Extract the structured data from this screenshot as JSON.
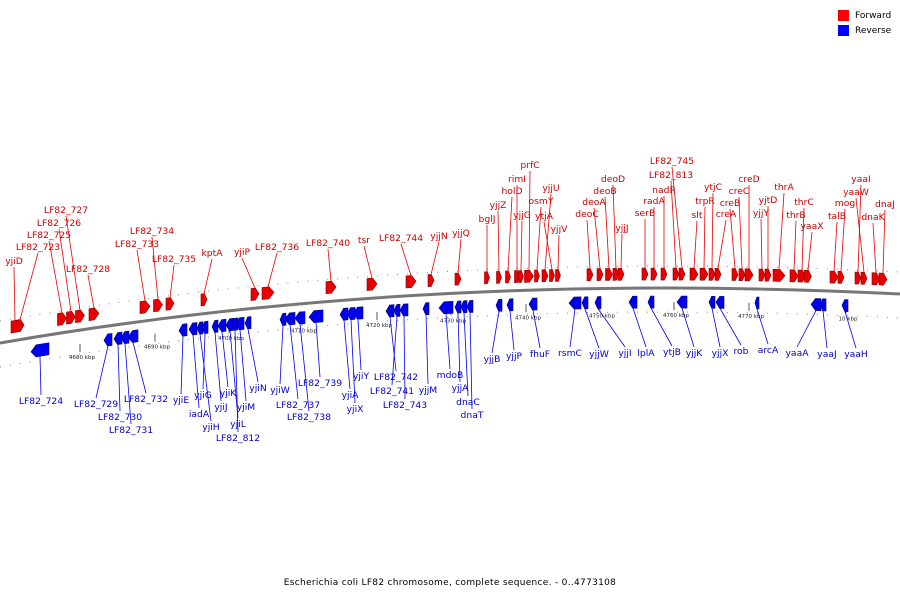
{
  "legend": [
    {
      "label": "Forward",
      "color": "#ff0000"
    },
    {
      "label": "Reverse",
      "color": "#0000ff"
    }
  ],
  "colors": {
    "forward": "#e80000",
    "reverse": "#0000ee",
    "axis": "#777777",
    "forward_label": "#cc0000",
    "reverse_label": "#0000cc"
  },
  "caption": "Escherichia coli LF82 chromosome, complete sequence. - 0..4773108",
  "ticks": [
    "4680 kbp",
    "4690 kbp",
    "4700 kbp",
    "4710 kbp",
    "4720 kbp",
    "4730 kbp",
    "4740 kbp",
    "4750 kbp",
    "4760 kbp",
    "4770 kbp",
    "10 kbp"
  ],
  "forward_genes": [
    "yjiD",
    "LF82_723",
    "LF82_725",
    "LF82_726",
    "LF82_727",
    "LF82_728",
    "LF82_733",
    "LF82_734",
    "LF82_735",
    "kptA",
    "yjiP",
    "LF82_736",
    "LF82_740",
    "tsr",
    "LF82_744",
    "yjjN",
    "yjjQ",
    "bglJ",
    "yjjZ",
    "holD",
    "rimI",
    "yjjG",
    "prfC",
    "osmY",
    "yjjU",
    "ytjA",
    "yjjV",
    "deoC",
    "deoA",
    "deoB",
    "deoD",
    "yjjJ",
    "serB",
    "radA",
    "nadR",
    "LF82_813",
    "LF82_745",
    "slt",
    "trpR",
    "ytjC",
    "creA",
    "creB",
    "creC",
    "creD",
    "yjjY",
    "yjtD",
    "thrA",
    "thrB",
    "thrC",
    "yaaX",
    "talB",
    "mog",
    "yaaI",
    "yaaW",
    "dnaK",
    "dnaJ"
  ],
  "reverse_genes": [
    "LF82_724",
    "LF82_729",
    "LF82_730",
    "LF82_731",
    "LF82_732",
    "yjiE",
    "iadA",
    "yjiH",
    "yjiG",
    "yjiJ",
    "yjiK",
    "yjiL",
    "LF82_812",
    "yjiM",
    "yjiN",
    "yjiW",
    "LF82_737",
    "LF82_738",
    "LF82_739",
    "yjiA",
    "yjiX",
    "yjiY",
    "LF82_742",
    "LF82_741",
    "LF82_743",
    "yjjM",
    "mdoB",
    "yjjA",
    "dnaC",
    "dnaT",
    "yjjB",
    "yjjP",
    "fhuF",
    "rsmC",
    "yjjW",
    "yjjI",
    "lplA",
    "ytjB",
    "yjjK",
    "yjjX",
    "rob",
    "arcA",
    "yaaA",
    "yaaJ",
    "yaaH"
  ]
}
